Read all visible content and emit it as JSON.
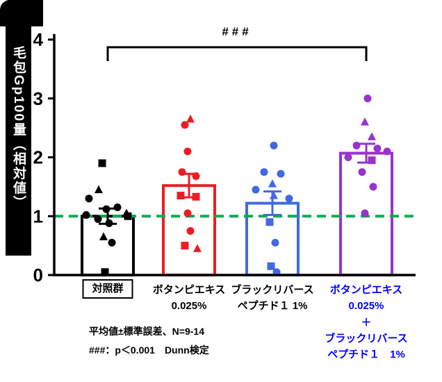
{
  "footer": {
    "line1": "平均値±標準誤差、N=9-14",
    "line2": "###：p＜0.001　Dunn検定"
  },
  "chart_data": {
    "type": "bar",
    "title": "",
    "xlabel": "",
    "ylabel": "毛包Gp100量（相対値）",
    "ylim": [
      0,
      4
    ],
    "yticks": [
      0,
      1,
      2,
      3,
      4
    ],
    "grid": false,
    "reference_line": {
      "y": 1,
      "color": "#00B050",
      "style": "dashed"
    },
    "significance": {
      "from_group": 0,
      "to_group": 3,
      "label": "###"
    },
    "groups": [
      {
        "label_lines": [
          "対照群"
        ],
        "label_boxed": true,
        "label_color": "#000000",
        "color": "#000000",
        "mean": 1.0,
        "sem": 0.13,
        "points": [
          {
            "v": 1.9,
            "m": "square",
            "dx": -8
          },
          {
            "v": 1.45,
            "m": "triangle",
            "dx": -13
          },
          {
            "v": 1.3,
            "m": "circle",
            "dx": -27
          },
          {
            "v": 1.15,
            "m": "circle",
            "dx": 14
          },
          {
            "v": 1.12,
            "m": "circle",
            "dx": -2
          },
          {
            "v": 1.05,
            "m": "triangle",
            "dx": 27
          },
          {
            "v": 1.02,
            "m": "circle",
            "dx": -31
          },
          {
            "v": 1.0,
            "m": "square",
            "dx": 29
          },
          {
            "v": 0.95,
            "m": "circle",
            "dx": -14
          },
          {
            "v": 0.88,
            "m": "circle",
            "dx": 2
          },
          {
            "v": 0.65,
            "m": "triangle",
            "dx": -6
          },
          {
            "v": 0.55,
            "m": "circle",
            "dx": 6
          },
          {
            "v": 0.05,
            "m": "square",
            "dx": -4
          }
        ]
      },
      {
        "label_lines": [
          "ボタンピエキス",
          "0.025%"
        ],
        "label_boxed": false,
        "label_color": "#000000",
        "color": "#ED1C24",
        "mean": 1.52,
        "sem": 0.2,
        "points": [
          {
            "v": 2.65,
            "m": "triangle",
            "dx": 2
          },
          {
            "v": 2.55,
            "m": "circle",
            "dx": -6
          },
          {
            "v": 2.1,
            "m": "circle",
            "dx": -2
          },
          {
            "v": 1.75,
            "m": "circle",
            "dx": -10
          },
          {
            "v": 1.68,
            "m": "circle",
            "dx": 10
          },
          {
            "v": 1.35,
            "m": "square",
            "dx": -12
          },
          {
            "v": 1.33,
            "m": "square",
            "dx": 10
          },
          {
            "v": 1.05,
            "m": "circle",
            "dx": -2
          },
          {
            "v": 0.75,
            "m": "circle",
            "dx": 2
          },
          {
            "v": 0.5,
            "m": "square",
            "dx": -6
          },
          {
            "v": 0.45,
            "m": "triangle",
            "dx": 12
          }
        ]
      },
      {
        "label_lines": [
          "ブラックリバース",
          "ペプチド１ 1%"
        ],
        "label_boxed": false,
        "label_color": "#000000",
        "color": "#4169E1",
        "mean": 1.22,
        "sem": 0.2,
        "points": [
          {
            "v": 2.2,
            "m": "circle",
            "dx": 2
          },
          {
            "v": 1.75,
            "m": "circle",
            "dx": -12
          },
          {
            "v": 1.72,
            "m": "circle",
            "dx": 12
          },
          {
            "v": 1.55,
            "m": "triangle",
            "dx": 0
          },
          {
            "v": 1.45,
            "m": "circle",
            "dx": -24
          },
          {
            "v": 1.35,
            "m": "triangle",
            "dx": 2
          },
          {
            "v": 1.3,
            "m": "circle",
            "dx": 24
          },
          {
            "v": 0.9,
            "m": "square",
            "dx": -4
          },
          {
            "v": 0.55,
            "m": "circle",
            "dx": 4
          },
          {
            "v": 0.15,
            "m": "square",
            "dx": -2
          },
          {
            "v": 0.05,
            "m": "circle",
            "dx": 6
          }
        ]
      },
      {
        "label_lines": [
          "ボタンピエキス",
          "0.025%",
          "＋",
          "ブラックリバース",
          "ペプチド１　1%"
        ],
        "label_boxed": false,
        "label_color": "#0000FF",
        "color": "#9933CC",
        "mean": 2.07,
        "sem": 0.16,
        "points": [
          {
            "v": 3.0,
            "m": "circle",
            "dx": 2
          },
          {
            "v": 2.6,
            "m": "triangle",
            "dx": -2
          },
          {
            "v": 2.35,
            "m": "triangle",
            "dx": 8
          },
          {
            "v": 2.2,
            "m": "circle",
            "dx": -14
          },
          {
            "v": 2.15,
            "m": "circle",
            "dx": 16
          },
          {
            "v": 2.1,
            "m": "circle",
            "dx": 30
          },
          {
            "v": 2.0,
            "m": "circle",
            "dx": -26
          },
          {
            "v": 1.95,
            "m": "square",
            "dx": 8
          },
          {
            "v": 1.75,
            "m": "circle",
            "dx": -6
          },
          {
            "v": 1.5,
            "m": "circle",
            "dx": 10
          },
          {
            "v": 1.05,
            "m": "circle",
            "dx": -2
          }
        ]
      }
    ]
  }
}
